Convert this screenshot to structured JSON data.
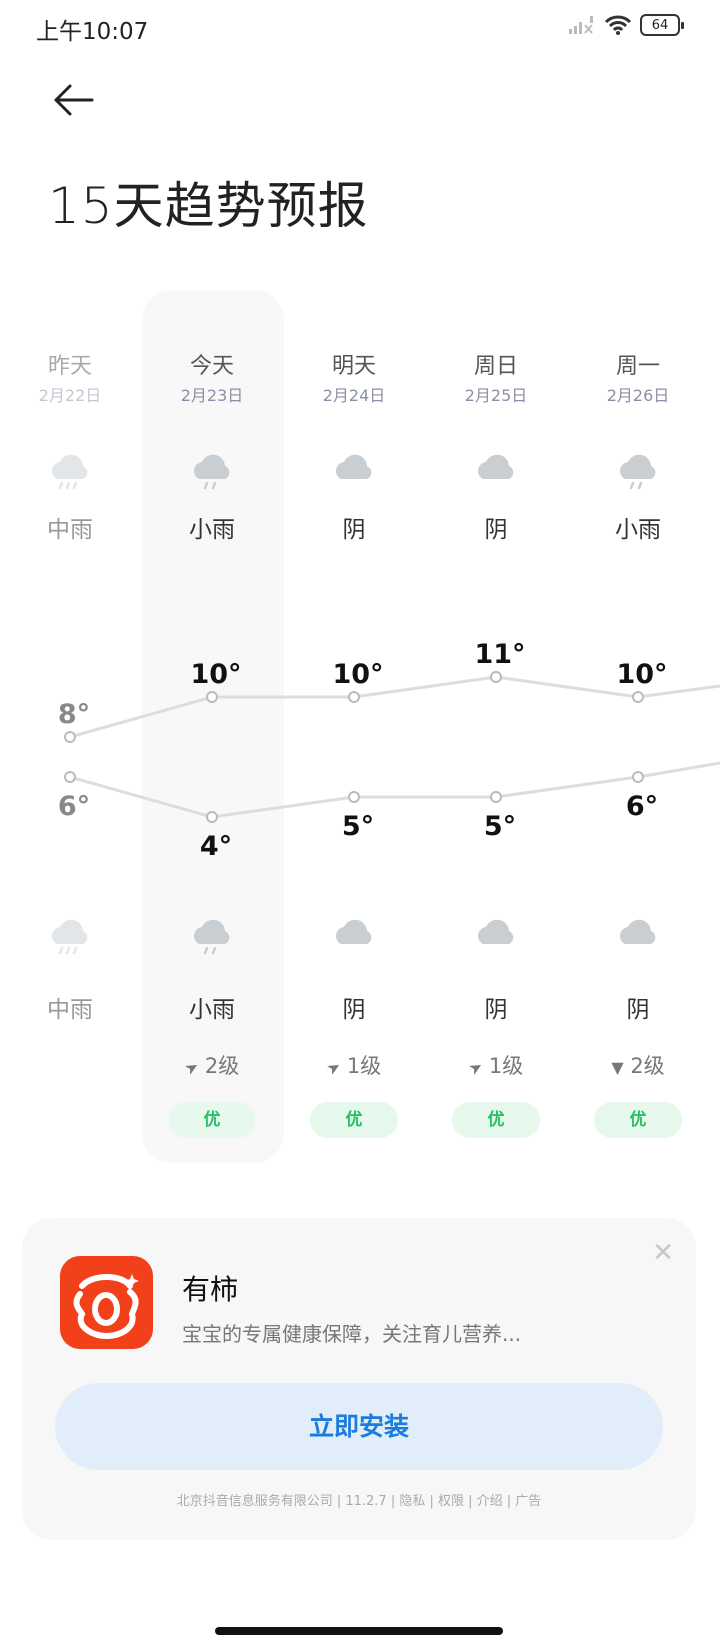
{
  "status": {
    "time": "上午10:07",
    "battery": "64",
    "icons": [
      "signal-off-icon",
      "wifi-icon",
      "battery-icon"
    ]
  },
  "header": {
    "back_icon": "arrow-left-icon",
    "title": "15天趋势预报"
  },
  "days": [
    {
      "day": "昨天",
      "date": "2月22日",
      "day_weather": "中雨",
      "day_icon": "rain-medium",
      "high": 8,
      "high_label": "8°",
      "low": 6,
      "low_label": "6°",
      "night_icon": "rain-medium",
      "night_weather": "中雨",
      "past": true
    },
    {
      "day": "今天",
      "date": "2月23日",
      "day_weather": "小雨",
      "day_icon": "rain-light",
      "high": 10,
      "high_label": "10°",
      "low": 4,
      "low_label": "4°",
      "night_icon": "rain-light",
      "night_weather": "小雨",
      "wind_dir": "northeast",
      "wind": "2级",
      "aqi": "优",
      "today": true
    },
    {
      "day": "明天",
      "date": "2月24日",
      "day_weather": "阴",
      "day_icon": "overcast",
      "high": 10,
      "high_label": "10°",
      "low": 5,
      "low_label": "5°",
      "night_icon": "overcast",
      "night_weather": "阴",
      "wind_dir": "northeast",
      "wind": "1级",
      "aqi": "优"
    },
    {
      "day": "周日",
      "date": "2月25日",
      "day_weather": "阴",
      "day_icon": "overcast",
      "high": 11,
      "high_label": "11°",
      "low": 5,
      "low_label": "5°",
      "night_icon": "overcast",
      "night_weather": "阴",
      "wind_dir": "northeast",
      "wind": "1级",
      "aqi": "优"
    },
    {
      "day": "周一",
      "date": "2月26日",
      "day_weather": "小雨",
      "day_icon": "rain-light",
      "high": 10,
      "high_label": "10°",
      "low": 6,
      "low_label": "6°",
      "night_icon": "overcast",
      "night_weather": "阴",
      "wind_dir": "south",
      "wind": "2级",
      "aqi": "优"
    }
  ],
  "ad": {
    "app_name": "有柿",
    "description": "宝宝的专属健康保障，关注育儿营养...",
    "install_label": "立即安装",
    "close_icon": "close-icon",
    "footer": "北京抖音信息服务有限公司 | 11.2.7 | 隐私 | 权限 | 介绍 | 广告",
    "brand_color": "#f2401a"
  },
  "colors": {
    "accent": "#1a7ce0",
    "aqi_good": "#2bbf6a",
    "line": "#dddddd"
  }
}
